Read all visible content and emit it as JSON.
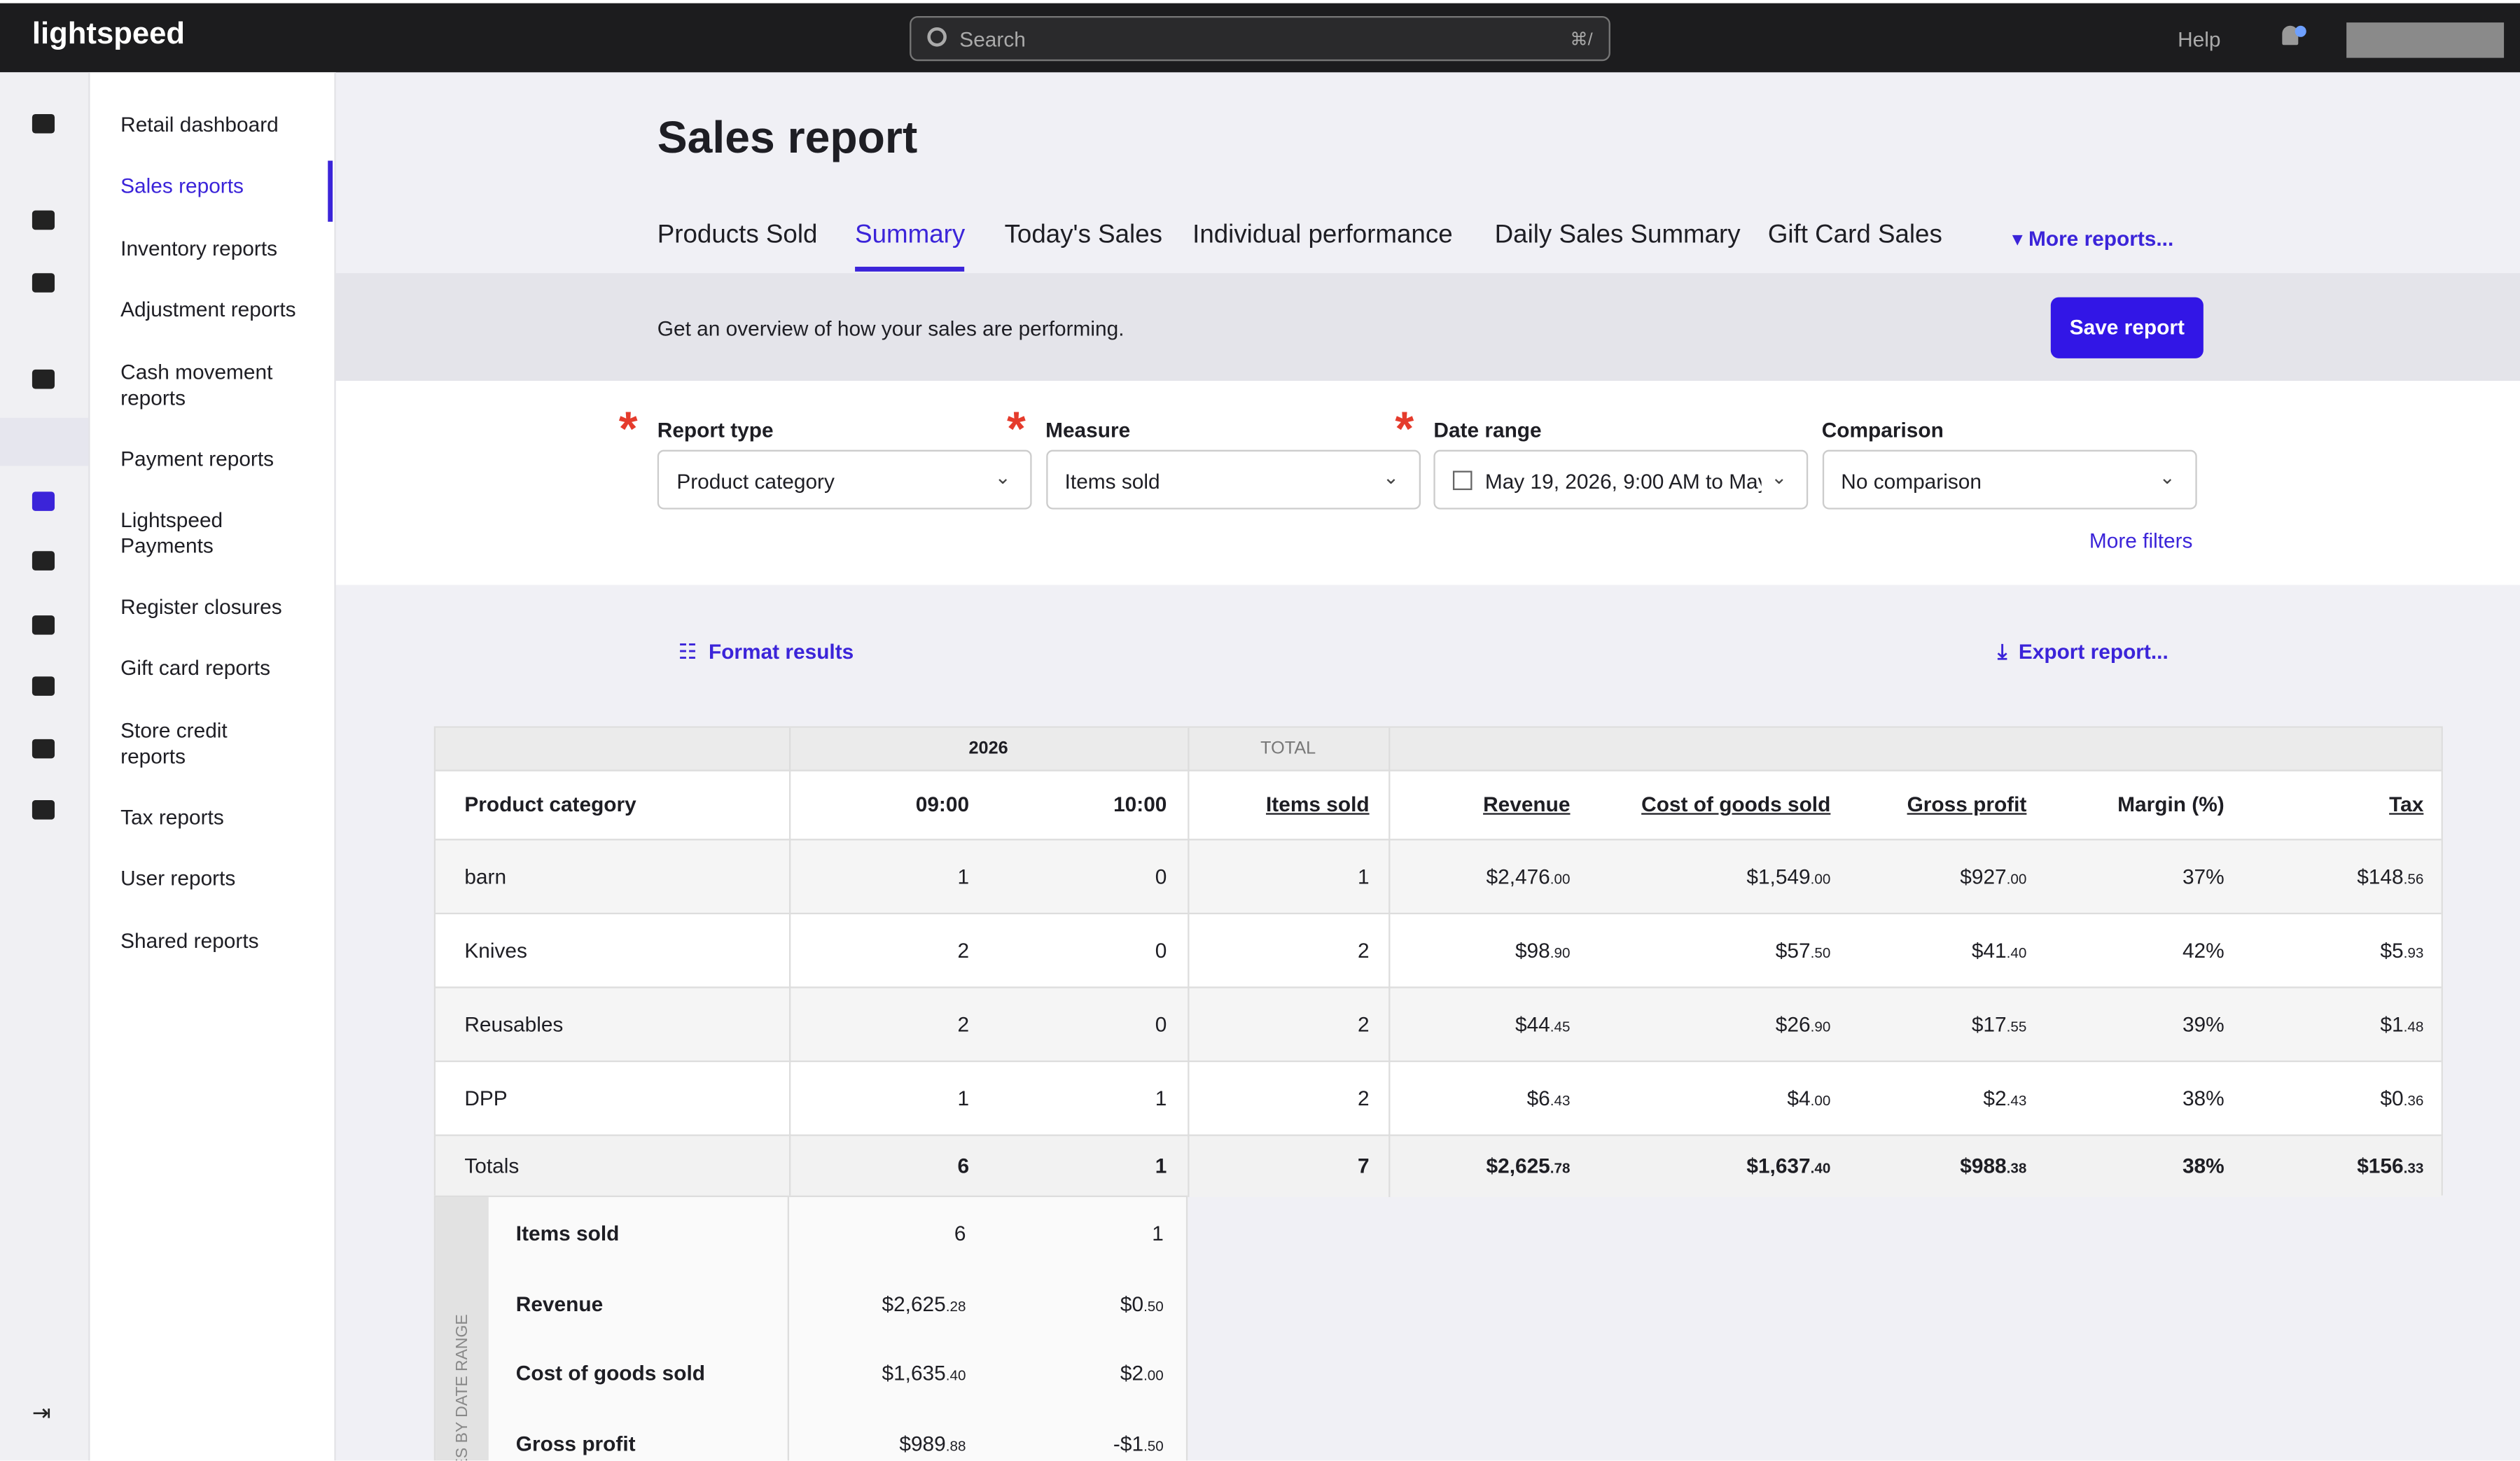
{
  "topbar": {
    "logo": "lightspeed",
    "search": "Search",
    "shortcut": "⌘/",
    "help": "Help"
  },
  "sidebar": {
    "active": 1,
    "items": [
      "Retail dashboard",
      "Sales reports",
      "Inventory reports",
      "Adjustment reports",
      "Cash movement reports",
      "Payment reports",
      "Lightspeed Payments",
      "Register closures",
      "Gift card reports",
      "Store credit reports",
      "Tax reports",
      "User reports",
      "Shared reports"
    ]
  },
  "header": {
    "title": "Sales report",
    "tabs": [
      "Products Sold",
      "Summary",
      "Today's Sales",
      "Individual performance",
      "Daily Sales Summary",
      "Gift Card Sales"
    ],
    "active_tab": 1,
    "more": "More reports..."
  },
  "banner": {
    "text": "Get an overview of how your sales are performing.",
    "button": "Save report"
  },
  "filters": {
    "fields": [
      {
        "label": "Report type",
        "value": "Product category",
        "required": true
      },
      {
        "label": "Measure",
        "value": "Items sold",
        "required": true
      },
      {
        "label": "Date range",
        "value": "May 19, 2026, 9:00 AM to May",
        "required": true
      },
      {
        "label": "Comparison",
        "value": "No comparison",
        "required": false
      }
    ],
    "more": "More filters"
  },
  "actions": {
    "format": "Format results",
    "export": "Export report..."
  },
  "table": {
    "groups": [
      "2026",
      "TOTAL"
    ],
    "columns": [
      "Product category",
      "09:00",
      "10:00",
      "Items sold",
      "Revenue",
      "Cost of goods sold",
      "Gross profit",
      "Margin (%)",
      "Tax"
    ],
    "rows": [
      [
        "barn",
        "1",
        "0",
        "1",
        [
          "$2,476",
          ".00"
        ],
        [
          "$1,549",
          ".00"
        ],
        [
          "$927",
          ".00"
        ],
        "37%",
        [
          "$148",
          ".56"
        ]
      ],
      [
        "Knives",
        "2",
        "0",
        "2",
        [
          "$98",
          ".90"
        ],
        [
          "$57",
          ".50"
        ],
        [
          "$41",
          ".40"
        ],
        "42%",
        [
          "$5",
          ".93"
        ]
      ],
      [
        "Reusables",
        "2",
        "0",
        "2",
        [
          "$44",
          ".45"
        ],
        [
          "$26",
          ".90"
        ],
        [
          "$17",
          ".55"
        ],
        "39%",
        [
          "$1",
          ".48"
        ]
      ],
      [
        "DPP",
        "1",
        "1",
        "2",
        [
          "$6",
          ".43"
        ],
        [
          "$4",
          ".00"
        ],
        [
          "$2",
          ".43"
        ],
        "38%",
        [
          "$0",
          ".36"
        ]
      ]
    ],
    "totals": [
      "Totals",
      "6",
      "1",
      "7",
      [
        "$2,625",
        ".78"
      ],
      [
        "$1,637",
        ".40"
      ],
      [
        "$988",
        ".38"
      ],
      "38%",
      [
        "$156",
        ".33"
      ]
    ],
    "breakdown_label": "SALES BY DATE RANGE",
    "breakdown": [
      [
        "Items sold",
        "6",
        "1"
      ],
      [
        "Revenue",
        [
          "$2,625",
          ".28"
        ],
        [
          "$0",
          ".50"
        ]
      ],
      [
        "Cost of goods sold",
        [
          "$1,635",
          ".40"
        ],
        [
          "$2",
          ".00"
        ]
      ],
      [
        "Gross profit",
        [
          "$989",
          ".88"
        ],
        [
          "-$1",
          ".50"
        ]
      ]
    ]
  }
}
